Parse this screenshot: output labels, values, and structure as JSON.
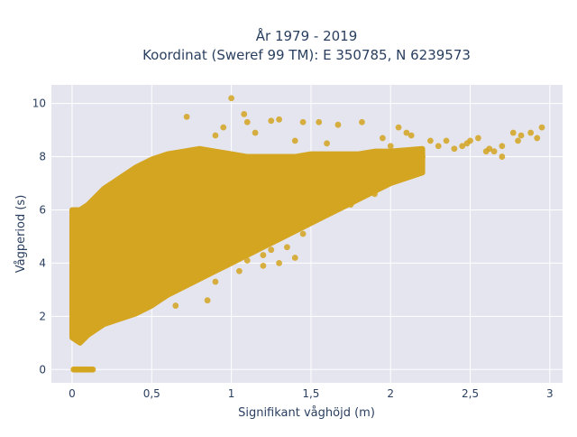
{
  "chart_data": {
    "type": "scatter",
    "title_line1": "År 1979 - 2019",
    "title_line2": "Koordinat (Sweref 99 TM): E 350785, N 6239573",
    "xlabel": "Signifikant våghöjd (m)",
    "ylabel": "Vågperiod (s)",
    "xlim": [
      -0.13,
      3.08
    ],
    "ylim": [
      -0.5,
      10.7
    ],
    "x_ticks": [
      {
        "value": 0,
        "label": "0"
      },
      {
        "value": 0.5,
        "label": "0,5"
      },
      {
        "value": 1,
        "label": "1"
      },
      {
        "value": 1.5,
        "label": "1,5"
      },
      {
        "value": 2,
        "label": "2"
      },
      {
        "value": 2.5,
        "label": "2,5"
      },
      {
        "value": 3,
        "label": "3"
      }
    ],
    "y_ticks": [
      {
        "value": 0,
        "label": "0"
      },
      {
        "value": 2,
        "label": "2"
      },
      {
        "value": 4,
        "label": "4"
      },
      {
        "value": 6,
        "label": "6"
      },
      {
        "value": 8,
        "label": "8"
      },
      {
        "value": 10,
        "label": "10"
      }
    ],
    "grid": true,
    "colors": {
      "marker": "#d4a520",
      "plot_bg": "#e5e5f0",
      "grid": "#ffffff",
      "text": "#2a3f5f"
    },
    "band_envelope": {
      "x": [
        0.0,
        0.05,
        0.1,
        0.2,
        0.3,
        0.4,
        0.5,
        0.6,
        0.7,
        0.8,
        0.9,
        1.0,
        1.1,
        1.2,
        1.3,
        1.4,
        1.5,
        1.6,
        1.7,
        1.8,
        1.9,
        2.0,
        2.2
      ],
      "y_low": [
        1.2,
        1.0,
        1.3,
        1.7,
        1.9,
        2.1,
        2.4,
        2.8,
        3.1,
        3.4,
        3.7,
        4.0,
        4.3,
        4.6,
        4.9,
        5.2,
        5.5,
        5.8,
        6.1,
        6.4,
        6.7,
        7.0,
        7.4
      ],
      "y_high": [
        6.0,
        6.0,
        6.2,
        6.8,
        7.2,
        7.6,
        7.9,
        8.1,
        8.2,
        8.3,
        8.2,
        8.1,
        8.0,
        8.0,
        8.0,
        8.0,
        8.1,
        8.1,
        8.1,
        8.1,
        8.2,
        8.2,
        8.3
      ]
    },
    "zero_period_points": {
      "x": [
        0.01,
        0.02,
        0.03,
        0.04,
        0.05,
        0.06,
        0.07,
        0.08,
        0.09,
        0.1,
        0.11,
        0.12,
        0.13
      ],
      "y": [
        0,
        0,
        0,
        0,
        0,
        0,
        0,
        0,
        0,
        0,
        0,
        0,
        0
      ]
    },
    "outlier_points": {
      "x": [
        1.0,
        0.72,
        1.08,
        1.1,
        1.3,
        1.45,
        1.25,
        1.55,
        1.67,
        1.82,
        2.05,
        2.13,
        2.25,
        2.35,
        2.48,
        2.55,
        2.62,
        2.7,
        2.77,
        2.82,
        2.88,
        2.92,
        2.95,
        2.4,
        2.6,
        2.5,
        2.3,
        2.1,
        1.95,
        2.0,
        2.7,
        2.2,
        1.4,
        1.6,
        0.9,
        1.15,
        0.95,
        2.8,
        2.45,
        2.65
      ],
      "y": [
        10.2,
        9.5,
        9.6,
        9.3,
        9.4,
        9.3,
        9.35,
        9.3,
        9.2,
        9.3,
        9.1,
        8.8,
        8.6,
        8.6,
        8.5,
        8.7,
        8.3,
        8.4,
        8.9,
        8.8,
        8.9,
        8.7,
        9.1,
        8.3,
        8.2,
        8.6,
        8.4,
        8.9,
        8.7,
        8.4,
        8.0,
        8.0,
        8.6,
        8.5,
        8.8,
        8.9,
        9.1,
        8.6,
        8.4,
        8.2
      ]
    },
    "low_side_points": {
      "x": [
        1.2,
        1.3,
        1.35,
        1.4,
        1.45,
        1.2,
        0.85,
        0.65,
        0.9,
        1.05,
        1.1,
        1.25,
        1.5,
        1.6,
        1.75,
        1.9
      ],
      "y": [
        4.3,
        4.0,
        4.6,
        4.2,
        5.1,
        3.9,
        2.6,
        2.4,
        3.3,
        3.7,
        4.1,
        4.5,
        5.6,
        5.9,
        6.2,
        6.6
      ]
    }
  }
}
